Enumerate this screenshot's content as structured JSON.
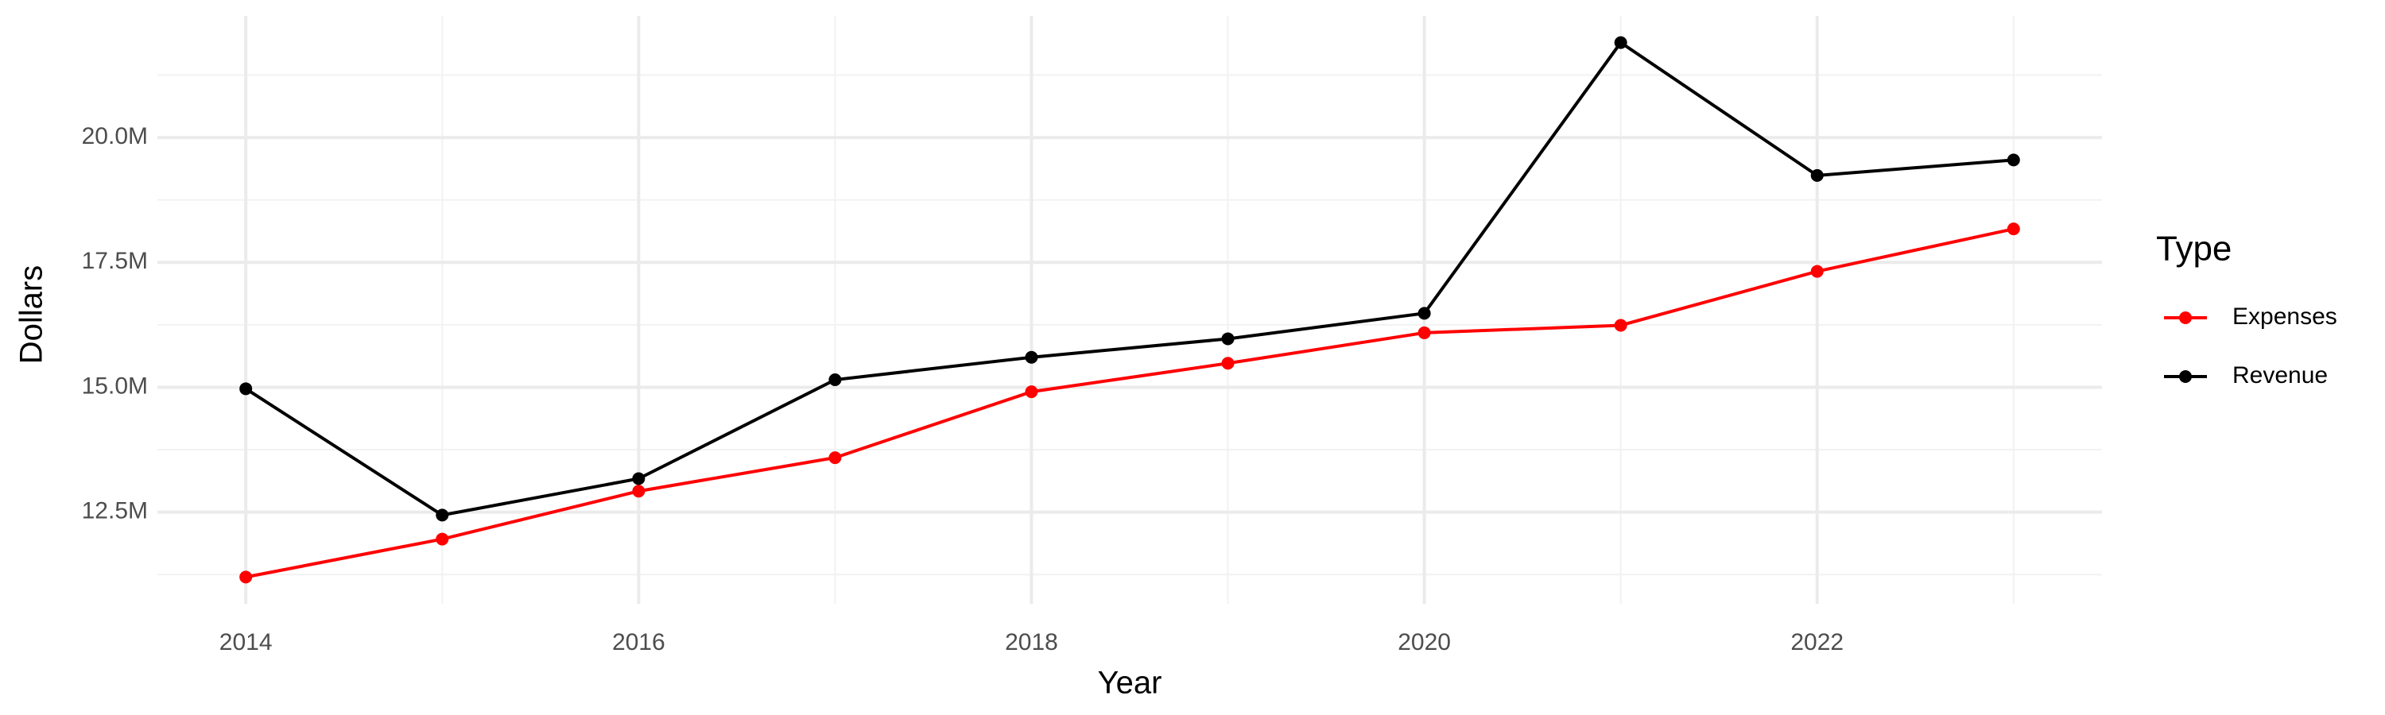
{
  "chart_data": {
    "type": "line",
    "x_label": "Year",
    "y_label": "Dollars",
    "legend_title": "Type",
    "x": [
      2014,
      2015,
      2016,
      2017,
      2018,
      2019,
      2020,
      2021,
      2022,
      2023
    ],
    "series": [
      {
        "name": "Expenses",
        "color": "#ff0000",
        "values": [
          11200000,
          11960000,
          12920000,
          13590000,
          14910000,
          15480000,
          16090000,
          16240000,
          17320000,
          18170000
        ]
      },
      {
        "name": "Revenue",
        "color": "#000000",
        "values": [
          14970000,
          12440000,
          13170000,
          15150000,
          15600000,
          15970000,
          16480000,
          21900000,
          19240000,
          19550000
        ]
      }
    ],
    "xlim": [
      2013.55,
      2023.45
    ],
    "ylim": [
      10665000,
      22435000
    ],
    "xticks": [
      2014,
      2016,
      2018,
      2020,
      2022
    ],
    "yticks": [
      {
        "value": 12500000,
        "label": "12.5M"
      },
      {
        "value": 15000000,
        "label": "15.0M"
      },
      {
        "value": 17500000,
        "label": "17.5M"
      },
      {
        "value": 20000000,
        "label": "20.0M"
      }
    ],
    "xminor": [
      2015,
      2017,
      2019,
      2021,
      2023
    ],
    "yminor": [
      11250000,
      13750000,
      16250000,
      18750000,
      21250000
    ],
    "grid": true,
    "legend": "right"
  }
}
